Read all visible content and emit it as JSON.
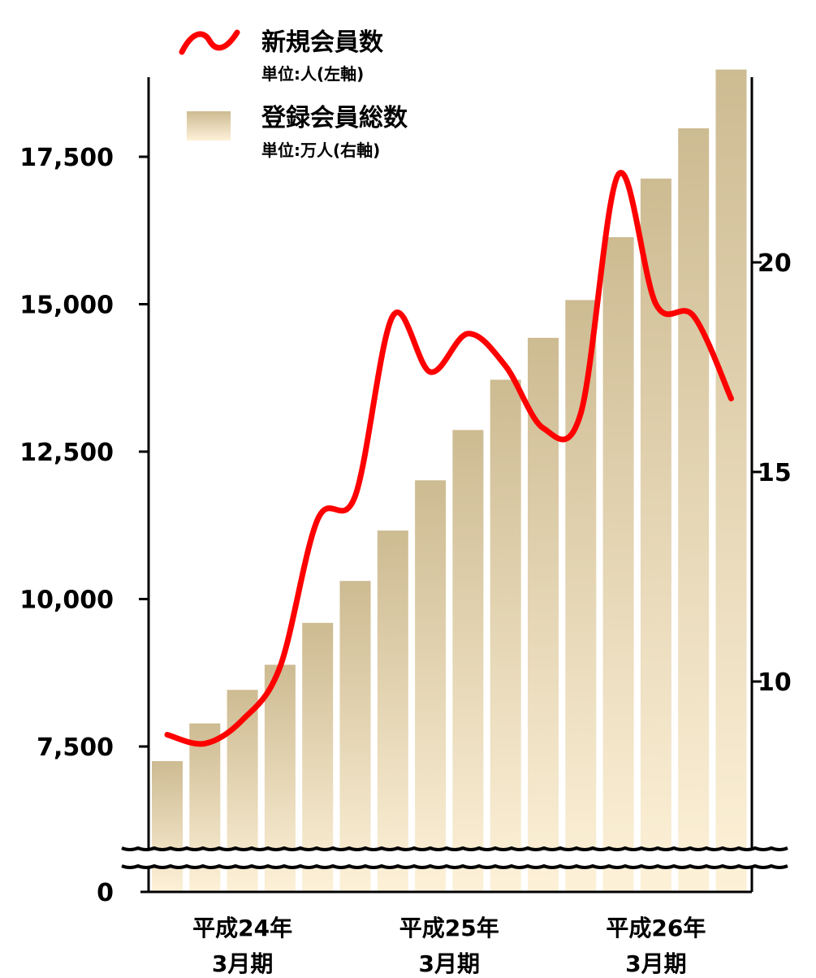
{
  "chart_data": {
    "type": "bar+line",
    "x": [
      "",
      "",
      "",
      "",
      "",
      "",
      "",
      "",
      "",
      "",
      "",
      "",
      "",
      "",
      "",
      ""
    ],
    "x_tick_labels": [
      {
        "index": 2,
        "line1": "平成24年",
        "line2": "3月期"
      },
      {
        "index": 7.5,
        "line1": "平成25年",
        "line2": "3月期"
      },
      {
        "index": 13,
        "line1": "平成26年",
        "line2": "3月期"
      }
    ],
    "series": [
      {
        "name": "登録会員総数",
        "unit": "単位:万人(右軸)",
        "type": "bar",
        "axis": "right",
        "values": [
          8.1,
          9.0,
          9.8,
          10.4,
          11.4,
          12.4,
          13.6,
          14.8,
          16.0,
          17.2,
          18.2,
          19.1,
          20.6,
          22.0,
          23.2,
          24.6
        ]
      },
      {
        "name": "新規会員数",
        "unit": "単位:人(左軸)",
        "type": "line",
        "axis": "left",
        "values": [
          7700,
          7550,
          7950,
          8850,
          11350,
          11750,
          14800,
          13850,
          14500,
          13950,
          12900,
          13150,
          17200,
          15000,
          14800,
          13400
        ]
      }
    ],
    "left_axis": {
      "ticks": [
        7500,
        10000,
        12500,
        15000,
        17500
      ],
      "tick_labels": [
        "7,500",
        "10,000",
        "12,500",
        "15,000",
        "17,500"
      ],
      "zero_label": "0",
      "ylim": [
        6000,
        18750
      ],
      "broken": true
    },
    "right_axis": {
      "ticks": [
        10,
        15,
        20
      ],
      "tick_labels": [
        "10",
        "15",
        "20"
      ],
      "ylim": [
        5,
        25
      ],
      "broken": true
    },
    "legend": {
      "placement": "top-left",
      "line_color": "#ff0000",
      "bar_color": "#d4c49c"
    },
    "colors": {
      "line": "#ff0000",
      "bar_top": "#cdbb92",
      "bar_bottom": "#fdf1d8",
      "axis": "#000000"
    }
  }
}
